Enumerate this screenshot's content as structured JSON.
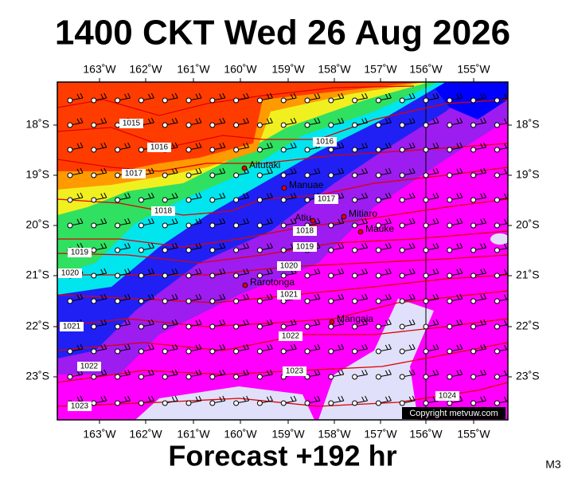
{
  "header": {
    "title": "1400 CKT Wed 26 Aug 2026"
  },
  "map": {
    "lon_labels": [
      "163˚W",
      "162˚W",
      "161˚W",
      "160˚W",
      "159˚W",
      "158˚W",
      "157˚W",
      "156˚W",
      "155˚W"
    ],
    "lat_labels": [
      "18˚S",
      "19˚S",
      "20˚S",
      "21˚S",
      "22˚S",
      "23˚S"
    ],
    "places": [
      "Aitutaki",
      "Manuae",
      "Atiu",
      "Mitiaro",
      "Mauke",
      "Rarotonga",
      "Mangaia"
    ],
    "isobar_labels": [
      "1015",
      "1016",
      "1017",
      "1018",
      "1019",
      "1020",
      "1021",
      "1022",
      "1023",
      "1016",
      "1017",
      "1018",
      "1019",
      "1020",
      "1021",
      "1022",
      "1023",
      "1024"
    ],
    "copyright": "Copyright metvuw.com"
  },
  "footer": {
    "forecast": "Forecast +192 hr",
    "code": "M3"
  }
}
